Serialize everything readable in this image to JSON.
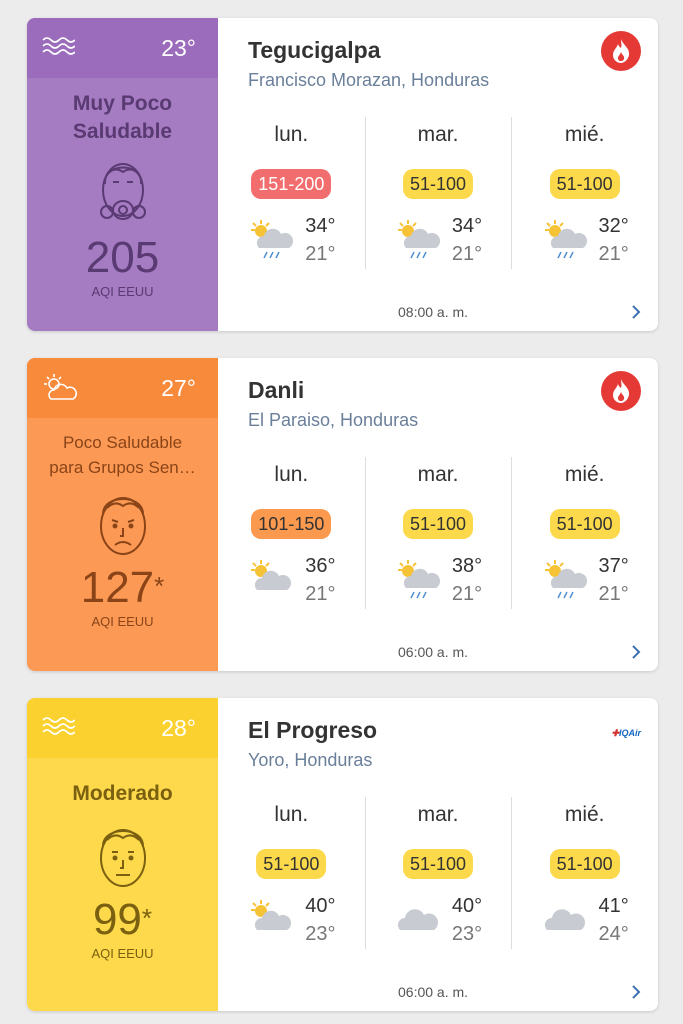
{
  "cards": [
    {
      "left_color": "#a57bc2",
      "top_color": "#9a6cbb",
      "text_color": "#5a3a72",
      "weather_icon": "waves-icon",
      "current_temp": "23°",
      "status": "Muy Poco Saludable",
      "face": "gas-mask-face-icon",
      "aqi": "205",
      "aqi_star": "",
      "aqi_label": "AQI EEUU",
      "city": "Tegucigalpa",
      "region": "Francisco Morazan, Honduras",
      "badge": "fire-icon",
      "time": "08:00 a. m.",
      "days": [
        {
          "name": "lun.",
          "range": "151-200",
          "range_color": "#f26d6d",
          "icon": "sun-rain-icon",
          "max": "34°",
          "min": "21°"
        },
        {
          "name": "mar.",
          "range": "51-100",
          "range_color": "#fbd94a",
          "icon": "sun-rain-icon",
          "max": "34°",
          "min": "21°"
        },
        {
          "name": "mié.",
          "range": "51-100",
          "range_color": "#fbd94a",
          "icon": "sun-rain-icon",
          "max": "32°",
          "min": "21°"
        }
      ]
    },
    {
      "left_color": "#fc9a55",
      "top_color": "#f88a3c",
      "text_color": "#8a4418",
      "weather_icon": "sun-cloud-outline-icon",
      "current_temp": "27°",
      "status": "Poco Saludable para Grupos Sen…",
      "status_line1": "Poco Saludable",
      "status_line2": "para Grupos Sen…",
      "face": "sad-face-icon",
      "aqi": "127",
      "aqi_star": "*",
      "aqi_label": "AQI EEUU",
      "city": "Danli",
      "region": "El Paraiso, Honduras",
      "badge": "fire-icon",
      "time": "06:00 a. m.",
      "days": [
        {
          "name": "lun.",
          "range": "101-150",
          "range_color": "#fb9a4f",
          "icon": "sun-cloud-icon",
          "max": "36°",
          "min": "21°"
        },
        {
          "name": "mar.",
          "range": "51-100",
          "range_color": "#fbd94a",
          "icon": "sun-rain-icon",
          "max": "38°",
          "min": "21°"
        },
        {
          "name": "mié.",
          "range": "51-100",
          "range_color": "#fbd94a",
          "icon": "sun-rain-icon",
          "max": "37°",
          "min": "21°"
        }
      ]
    },
    {
      "left_color": "#fdd94b",
      "top_color": "#fbd12f",
      "text_color": "#7a6010",
      "weather_icon": "waves-icon",
      "current_temp": "28°",
      "status": "Moderado",
      "face": "neutral-face-icon",
      "aqi": "99",
      "aqi_star": "*",
      "aqi_label": "AQI EEUU",
      "city": "El Progreso",
      "region": "Yoro, Honduras",
      "badge": "iqair-logo",
      "badge_text": "IQAir",
      "time": "06:00 a. m.",
      "days": [
        {
          "name": "lun.",
          "range": "51-100",
          "range_color": "#fbd94a",
          "icon": "sun-cloud-icon",
          "max": "40°",
          "min": "23°"
        },
        {
          "name": "mar.",
          "range": "51-100",
          "range_color": "#fbd94a",
          "icon": "cloud-icon",
          "max": "40°",
          "min": "23°"
        },
        {
          "name": "mié.",
          "range": "51-100",
          "range_color": "#fbd94a",
          "icon": "cloud-icon",
          "max": "41°",
          "min": "24°"
        }
      ]
    }
  ]
}
